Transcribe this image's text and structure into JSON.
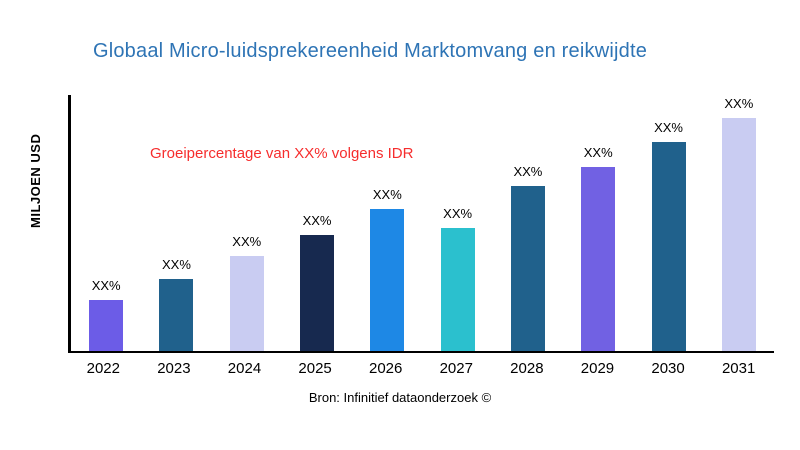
{
  "chart_data": {
    "type": "bar",
    "title": "Globaal Micro-luidsprekereenheid Marktomvang en reikwijdte",
    "ylabel": "MILJOEN USD",
    "xlabel": "",
    "annotation": "Groeipercentage van XX% volgens IDR",
    "source": "Bron: Infinitief dataonderzoek ©",
    "categories": [
      "2022",
      "2023",
      "2024",
      "2025",
      "2026",
      "2027",
      "2028",
      "2029",
      "2030",
      "2031"
    ],
    "values": [
      22,
      31,
      41,
      50,
      61,
      53,
      71,
      79,
      90,
      100
    ],
    "bar_labels": [
      "XX%",
      "XX%",
      "XX%",
      "XX%",
      "XX%",
      "XX%",
      "XX%",
      "XX%",
      "XX%",
      "XX%"
    ],
    "colors": [
      "#6C5CE7",
      "#20618C",
      "#C9CCF2",
      "#17294F",
      "#1E88E5",
      "#2BC0CE",
      "#20618C",
      "#7161E3",
      "#20618C",
      "#C9CCF2"
    ],
    "ylim": [
      0,
      110
    ],
    "grid": false,
    "legend": false,
    "theme": {
      "title_color": "#2E74B5",
      "annotation_color": "#F62D2D",
      "axis_color": "#000000",
      "label_color": "#000000"
    }
  }
}
